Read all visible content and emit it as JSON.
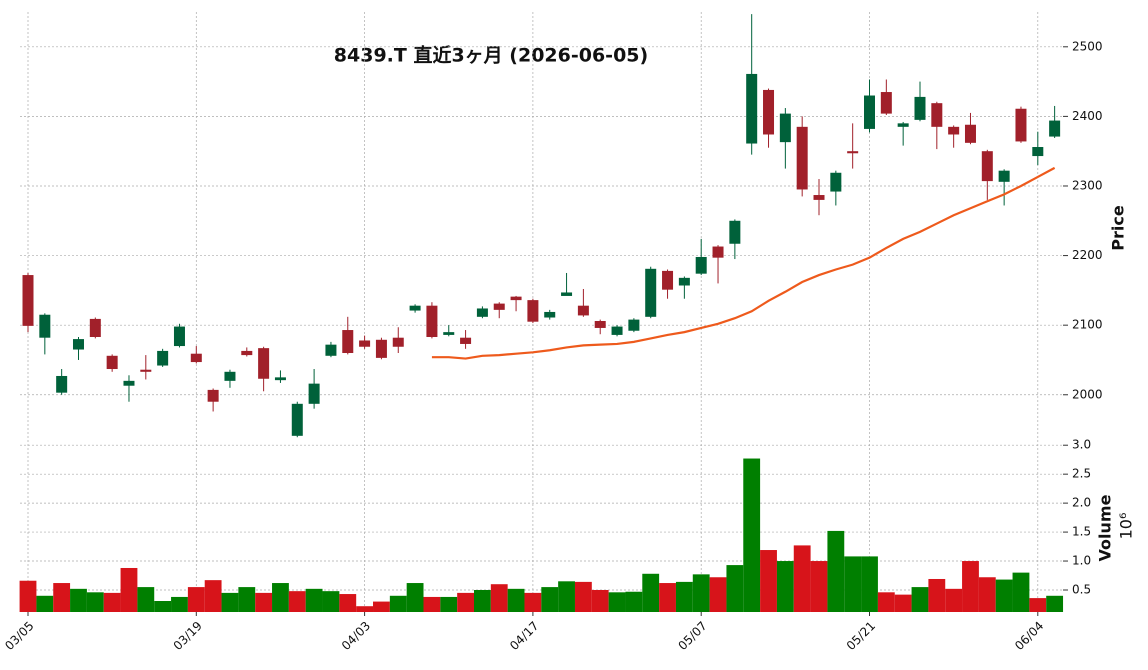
{
  "chart_data": {
    "type": "candlestick",
    "title": "8439.T  直近3ヶ月  (2026-06-05)",
    "categories": [
      "03/05",
      null,
      null,
      null,
      null,
      null,
      null,
      null,
      null,
      null,
      "03/19",
      null,
      null,
      null,
      null,
      null,
      null,
      null,
      null,
      null,
      "04/03",
      null,
      null,
      null,
      null,
      null,
      null,
      null,
      null,
      null,
      "04/17",
      null,
      null,
      null,
      null,
      null,
      null,
      null,
      null,
      null,
      "05/07",
      null,
      null,
      null,
      null,
      null,
      null,
      null,
      null,
      null,
      "05/21",
      null,
      null,
      null,
      null,
      null,
      null,
      null,
      null,
      null,
      "06/04",
      null
    ],
    "open": [
      2172,
      2082,
      2003,
      2065,
      2109,
      2056,
      2013,
      2036,
      2042,
      2070,
      2059,
      2007,
      2020,
      2063,
      2067,
      2021,
      1941,
      1987,
      2056,
      2093,
      2078,
      2079,
      2082,
      2121,
      2128,
      2086,
      2082,
      2112,
      2131,
      2141,
      2136,
      2111,
      2142,
      2128,
      2106,
      2086,
      2092,
      2112,
      2178,
      2157,
      2174,
      2213,
      2217,
      2361,
      2438,
      2363,
      2385,
      2287,
      2292,
      2350,
      2382,
      2435,
      2385,
      2395,
      2419,
      2385,
      2388,
      2350,
      2306,
      2411,
      2343,
      2371
    ],
    "high": [
      2175,
      2117,
      2037,
      2083,
      2111,
      2058,
      2028,
      2057,
      2066,
      2102,
      2070,
      2009,
      2036,
      2068,
      2069,
      2035,
      1990,
      2037,
      2076,
      2112,
      2085,
      2082,
      2097,
      2130,
      2133,
      2100,
      2093,
      2127,
      2133,
      2142,
      2138,
      2122,
      2175,
      2152,
      2108,
      2100,
      2110,
      2184,
      2180,
      2170,
      2224,
      2215,
      2252,
      2547,
      2440,
      2412,
      2400,
      2310,
      2322,
      2390,
      2453,
      2453,
      2392,
      2450,
      2421,
      2387,
      2405,
      2352,
      2324,
      2414,
      2378,
      2415
    ],
    "low": [
      2090,
      2058,
      2000,
      2050,
      2081,
      2033,
      1990,
      2022,
      2040,
      2068,
      2045,
      1976,
      2010,
      2055,
      2005,
      2017,
      1939,
      1980,
      2054,
      2058,
      2066,
      2051,
      2060,
      2118,
      2081,
      2084,
      2066,
      2110,
      2110,
      2120,
      2103,
      2108,
      2145,
      2112,
      2087,
      2084,
      2090,
      2110,
      2138,
      2138,
      2172,
      2160,
      2195,
      2345,
      2355,
      2325,
      2285,
      2258,
      2272,
      2325,
      2377,
      2402,
      2358,
      2393,
      2353,
      2355,
      2360,
      2280,
      2272,
      2362,
      2330,
      2369
    ],
    "close": [
      2099,
      2115,
      2027,
      2080,
      2083,
      2037,
      2020,
      2033,
      2063,
      2098,
      2047,
      1990,
      2033,
      2057,
      2023,
      2025,
      1987,
      2016,
      2072,
      2060,
      2069,
      2053,
      2069,
      2128,
      2083,
      2090,
      2073,
      2124,
      2122,
      2136,
      2105,
      2119,
      2147,
      2114,
      2096,
      2098,
      2108,
      2181,
      2151,
      2168,
      2198,
      2197,
      2250,
      2461,
      2374,
      2404,
      2295,
      2280,
      2319,
      2347,
      2430,
      2404,
      2390,
      2428,
      2385,
      2374,
      2362,
      2307,
      2322,
      2364,
      2356,
      2394
    ],
    "up_color": "#00613a",
    "down_color": "#a1202a",
    "ylim": [
      1935,
      2550
    ],
    "yticks": [
      2000,
      2100,
      2200,
      2300,
      2400,
      2500
    ],
    "ylabel": "Price",
    "grid": true,
    "moving_average": {
      "color": "#ee5a1c",
      "values": [
        null,
        null,
        null,
        null,
        null,
        null,
        null,
        null,
        null,
        null,
        null,
        null,
        null,
        null,
        null,
        null,
        null,
        null,
        null,
        null,
        null,
        null,
        null,
        null,
        2054,
        2054,
        2052,
        2056,
        2057,
        2059,
        2061,
        2064,
        2068,
        2071,
        2072,
        2073,
        2076,
        2081,
        2086,
        2090,
        2096,
        2102,
        2110,
        2120,
        2135,
        2148,
        2162,
        2172,
        2180,
        2187,
        2197,
        2211,
        2224,
        2234,
        2246,
        2258,
        2268,
        2278,
        2288,
        2300,
        2313,
        2326
      ]
    },
    "volume": {
      "ylabel": "Volume",
      "multiplier": "10⁶",
      "values": [
        0.66,
        0.4,
        0.62,
        0.52,
        0.46,
        0.45,
        0.88,
        0.55,
        0.31,
        0.38,
        0.55,
        0.67,
        0.45,
        0.55,
        0.45,
        0.62,
        0.48,
        0.52,
        0.48,
        0.43,
        0.22,
        0.3,
        0.4,
        0.62,
        0.38,
        0.38,
        0.45,
        0.5,
        0.6,
        0.52,
        0.45,
        0.55,
        0.65,
        0.64,
        0.5,
        0.46,
        0.47,
        0.78,
        0.62,
        0.64,
        0.77,
        0.72,
        0.93,
        2.77,
        1.19,
        1.0,
        1.27,
        1.0,
        1.52,
        1.08,
        1.08,
        0.46,
        0.42,
        0.55,
        0.69,
        0.52,
        1.0,
        0.72,
        0.68,
        0.8,
        0.36,
        0.4
      ],
      "colors": [
        "#d7141a",
        "#007f00",
        "#d7141a",
        "#007f00",
        "#007f00",
        "#d7141a",
        "#d7141a",
        "#007f00",
        "#007f00",
        "#007f00",
        "#d7141a",
        "#d7141a",
        "#007f00",
        "#007f00",
        "#d7141a",
        "#007f00",
        "#d7141a",
        "#007f00",
        "#007f00",
        "#d7141a",
        "#d7141a",
        "#d7141a",
        "#007f00",
        "#007f00",
        "#d7141a",
        "#007f00",
        "#d7141a",
        "#007f00",
        "#d7141a",
        "#007f00",
        "#d7141a",
        "#007f00",
        "#007f00",
        "#d7141a",
        "#d7141a",
        "#007f00",
        "#007f00",
        "#007f00",
        "#d7141a",
        "#007f00",
        "#007f00",
        "#d7141a",
        "#007f00",
        "#007f00",
        "#d7141a",
        "#007f00",
        "#d7141a",
        "#d7141a",
        "#007f00",
        "#007f00",
        "#007f00",
        "#d7141a",
        "#d7141a",
        "#007f00",
        "#d7141a",
        "#d7141a",
        "#d7141a",
        "#d7141a",
        "#007f00",
        "#007f00",
        "#d7141a",
        "#007f00"
      ],
      "ylim": [
        0.12,
        3.09
      ],
      "yticks": [
        0.5,
        {
          "value": 1.0,
          "label": "1.0"
        },
        1.5,
        {
          "value": 2.0,
          "label": "2.0"
        },
        2.5,
        {
          "value": 3.0,
          "label": "3.0"
        }
      ]
    }
  }
}
